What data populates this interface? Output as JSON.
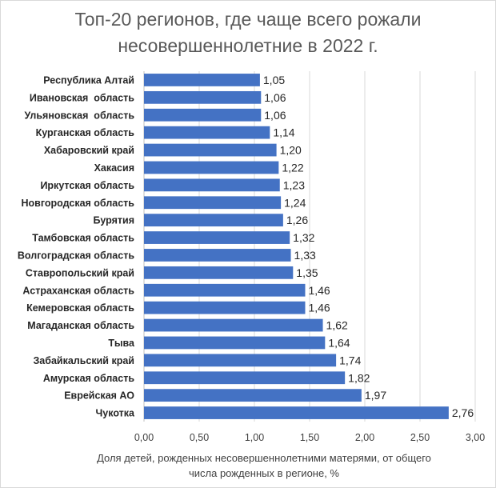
{
  "chart_data": {
    "type": "bar",
    "orientation": "horizontal",
    "title": "Топ-20 регионов, где чаще всего рожали несовершеннолетние в 2022 г.",
    "title_lines": [
      "Топ-20 регионов, где чаще всего рожали",
      "несовершеннолетние в 2022 г."
    ],
    "categories": [
      "Республика Алтай",
      "Ивановская  область",
      "Ульяновская  область",
      "Курганская область",
      "Хабаровский край",
      "Хакасия",
      "Иркутская область",
      "Новгородская область",
      "Бурятия",
      "Тамбовская область",
      "Волгоградская область",
      "Ставропольский край",
      "Астраханская область",
      "Кемеровская область",
      "Магаданская область",
      "Тыва",
      "Забайкальский край",
      "Амурская область",
      "Еврейская АО",
      "Чукотка"
    ],
    "values": [
      1.05,
      1.06,
      1.06,
      1.14,
      1.2,
      1.22,
      1.23,
      1.24,
      1.26,
      1.32,
      1.33,
      1.35,
      1.46,
      1.46,
      1.62,
      1.64,
      1.74,
      1.82,
      1.97,
      2.76
    ],
    "value_labels": [
      "1,05",
      "1,06",
      "1,06",
      "1,14",
      "1,20",
      "1,22",
      "1,23",
      "1,24",
      "1,26",
      "1,32",
      "1,33",
      "1,35",
      "1,46",
      "1,46",
      "1,62",
      "1,64",
      "1,74",
      "1,82",
      "1,97",
      "2,76"
    ],
    "xlabel": "Доля детей, рожденных несовершеннолетними матерями, от общего числа рожденных в регионе, %",
    "xlabel_lines": [
      "Доля детей, рожденных несовершеннолетними матерями, от общего",
      "числа рожденных в регионе, %"
    ],
    "xlim": [
      0,
      3
    ],
    "xticks": [
      0,
      0.5,
      1,
      1.5,
      2,
      2.5,
      3
    ],
    "xtick_labels": [
      "0,00",
      "0,50",
      "1,00",
      "1,50",
      "2,00",
      "2,50",
      "3,00"
    ],
    "grid": true,
    "bar_color": "#4472c4",
    "grid_color": "#d9d9d9"
  }
}
